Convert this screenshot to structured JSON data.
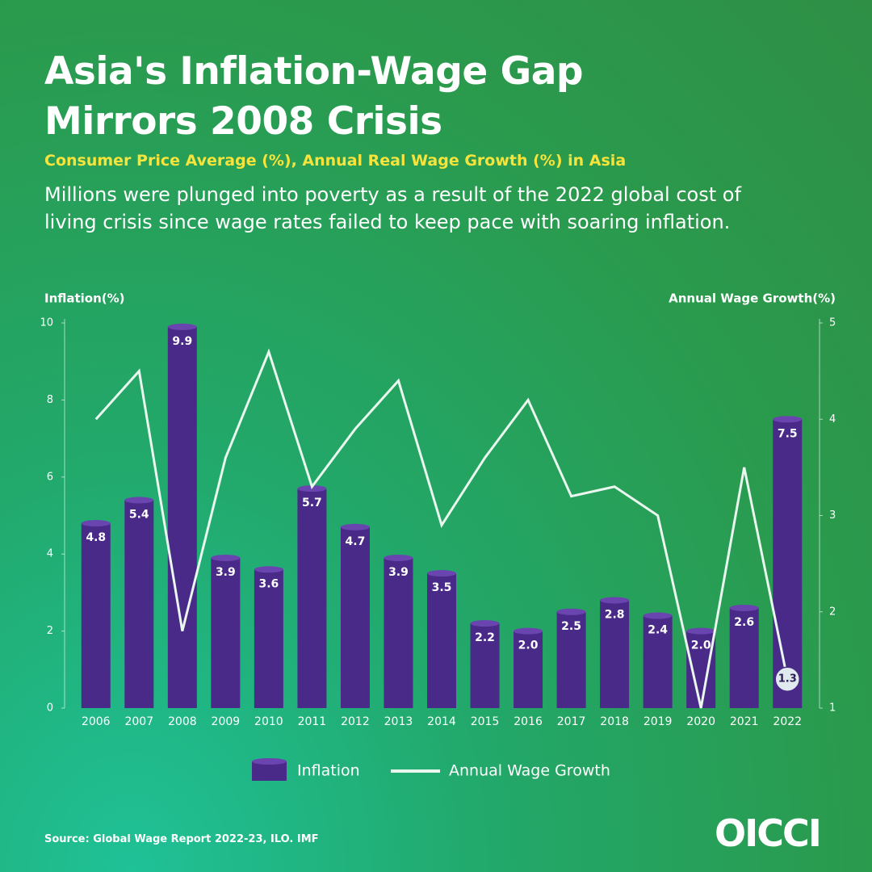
{
  "chart_data": {
    "type": "bar",
    "title": "Asia's Inflation-Wage Gap Mirrors 2008 Crisis",
    "subtitle": "Consumer Price Average (%), Annual Real Wage Growth (%) in Asia",
    "description": "Millions were plunged into poverty as a result of the 2022 global cost of living crisis since wage rates failed to keep pace with soaring inflation.",
    "y_label": "Inflation(%)",
    "y2_label": "Annual Wage Growth(%)",
    "source": "Source: Global Wage Report 2022-23, ILO. IMF",
    "logo": "OICCI",
    "categories": [
      "2006",
      "2007",
      "2008",
      "2009",
      "2010",
      "2011",
      "2012",
      "2013",
      "2014",
      "2015",
      "2016",
      "2017",
      "2018",
      "2019",
      "2020",
      "2021",
      "2022"
    ],
    "series": [
      {
        "name": "Inflation",
        "type": "bar",
        "color": "#4a2a88",
        "values": [
          4.8,
          5.4,
          9.9,
          3.9,
          3.6,
          5.7,
          4.7,
          3.9,
          3.5,
          2.2,
          2,
          2.5,
          2.8,
          2.4,
          2,
          2.6,
          7.5
        ],
        "value_labels": [
          "4.8",
          "5.4",
          "9.9",
          "3.9",
          "3.6",
          "5.7",
          "4.7",
          "3.9",
          "3.5",
          "2.2",
          "2.0",
          "2.5",
          "2.8",
          "2.4",
          "2.0",
          "2.6",
          "7.5"
        ]
      },
      {
        "name": "Annual Wage Growth",
        "type": "line",
        "axis": "y2",
        "color": "#e9f7ef",
        "values": [
          4.0,
          4.5,
          1.8,
          3.6,
          4.7,
          3.3,
          3.9,
          4.4,
          2.9,
          3.6,
          4.2,
          3.2,
          3.3,
          3.0,
          1.0,
          3.5,
          1.3
        ],
        "value_labels": [
          null,
          null,
          null,
          null,
          null,
          null,
          null,
          null,
          null,
          null,
          null,
          null,
          null,
          null,
          null,
          null,
          "1.3"
        ]
      }
    ],
    "ylim": [
      0,
      10
    ],
    "yticks": [
      0,
      2,
      4,
      6,
      8,
      10
    ],
    "y2lim": [
      1,
      5
    ],
    "y2ticks": [
      1,
      2,
      3,
      4,
      5
    ],
    "legend": "bottom"
  }
}
